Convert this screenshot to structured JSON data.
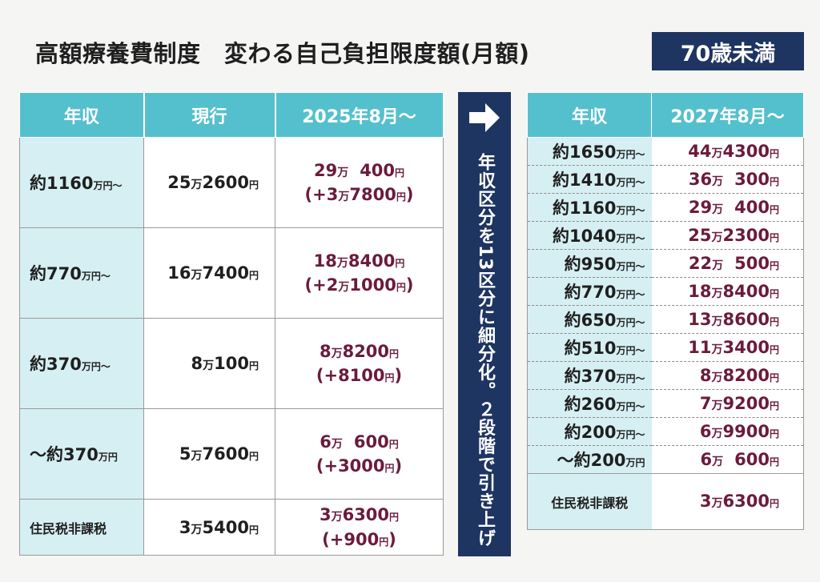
{
  "title": "高額療養費制度　変わる自己負担限度額(月額)",
  "badge": "70歳未満",
  "left_table": {
    "headers": [
      "年収",
      "現行",
      "2025年8月〜"
    ],
    "rows": [
      {
        "income": "約1160",
        "income_unit": "万円〜",
        "cur_man": "25",
        "cur_rest": "2600",
        "new_man": "29",
        "new_rest": "400",
        "diff_man": "+3",
        "diff_rest": "7800"
      },
      {
        "income": "約770",
        "income_unit": "万円〜",
        "cur_man": "16",
        "cur_rest": "7400",
        "new_man": "18",
        "new_rest": "8400",
        "diff_man": "+2",
        "diff_rest": "1000"
      },
      {
        "income": "約370",
        "income_unit": "万円〜",
        "cur_man": "8",
        "cur_rest": "100",
        "new_man": "8",
        "new_rest": "8200",
        "diff": "+8100"
      },
      {
        "income": "〜約370",
        "income_unit": "万円",
        "cur_man": "5",
        "cur_rest": "7600",
        "new_man": "6",
        "new_rest": "600",
        "diff": "+3000"
      },
      {
        "income": "住民税非課税",
        "cur_man": "3",
        "cur_rest": "5400",
        "new_man": "3",
        "new_rest": "6300",
        "diff": "+900"
      }
    ]
  },
  "middle_band": {
    "icon": "arrow-right-icon",
    "text": "年収区分を13区分に細分化。２段階で引き上げ"
  },
  "right_table": {
    "headers": [
      "年収",
      "2027年8月〜"
    ],
    "rows": [
      {
        "income": "約1650",
        "unit": "万円〜",
        "man": "44",
        "rest": "4300"
      },
      {
        "income": "約1410",
        "unit": "万円〜",
        "man": "36",
        "rest": "300"
      },
      {
        "income": "約1160",
        "unit": "万円〜",
        "man": "29",
        "rest": "400"
      },
      {
        "income": "約1040",
        "unit": "万円〜",
        "man": "25",
        "rest": "2300"
      },
      {
        "income": "約950",
        "unit": "万円〜",
        "man": "22",
        "rest": "500"
      },
      {
        "income": "約770",
        "unit": "万円〜",
        "man": "18",
        "rest": "8400"
      },
      {
        "income": "約650",
        "unit": "万円〜",
        "man": "13",
        "rest": "8600"
      },
      {
        "income": "約510",
        "unit": "万円〜",
        "man": "11",
        "rest": "3400"
      },
      {
        "income": "約370",
        "unit": "万円〜",
        "man": "8",
        "rest": "8200"
      },
      {
        "income": "約260",
        "unit": "万円〜",
        "man": "7",
        "rest": "9200"
      },
      {
        "income": "約200",
        "unit": "万円〜",
        "man": "6",
        "rest": "9900"
      },
      {
        "income": "〜約200",
        "unit": "万円",
        "man": "6",
        "rest": "600"
      },
      {
        "income": "住民税非課税",
        "man": "3",
        "rest": "6300"
      }
    ]
  },
  "units": {
    "man": "万",
    "yen": "円",
    "open": "(",
    "close": ")"
  },
  "colors": {
    "header": "#55c0cd",
    "income_cell": "#d6eff2",
    "navy": "#1e3461",
    "new_value": "#6b1b3c"
  }
}
